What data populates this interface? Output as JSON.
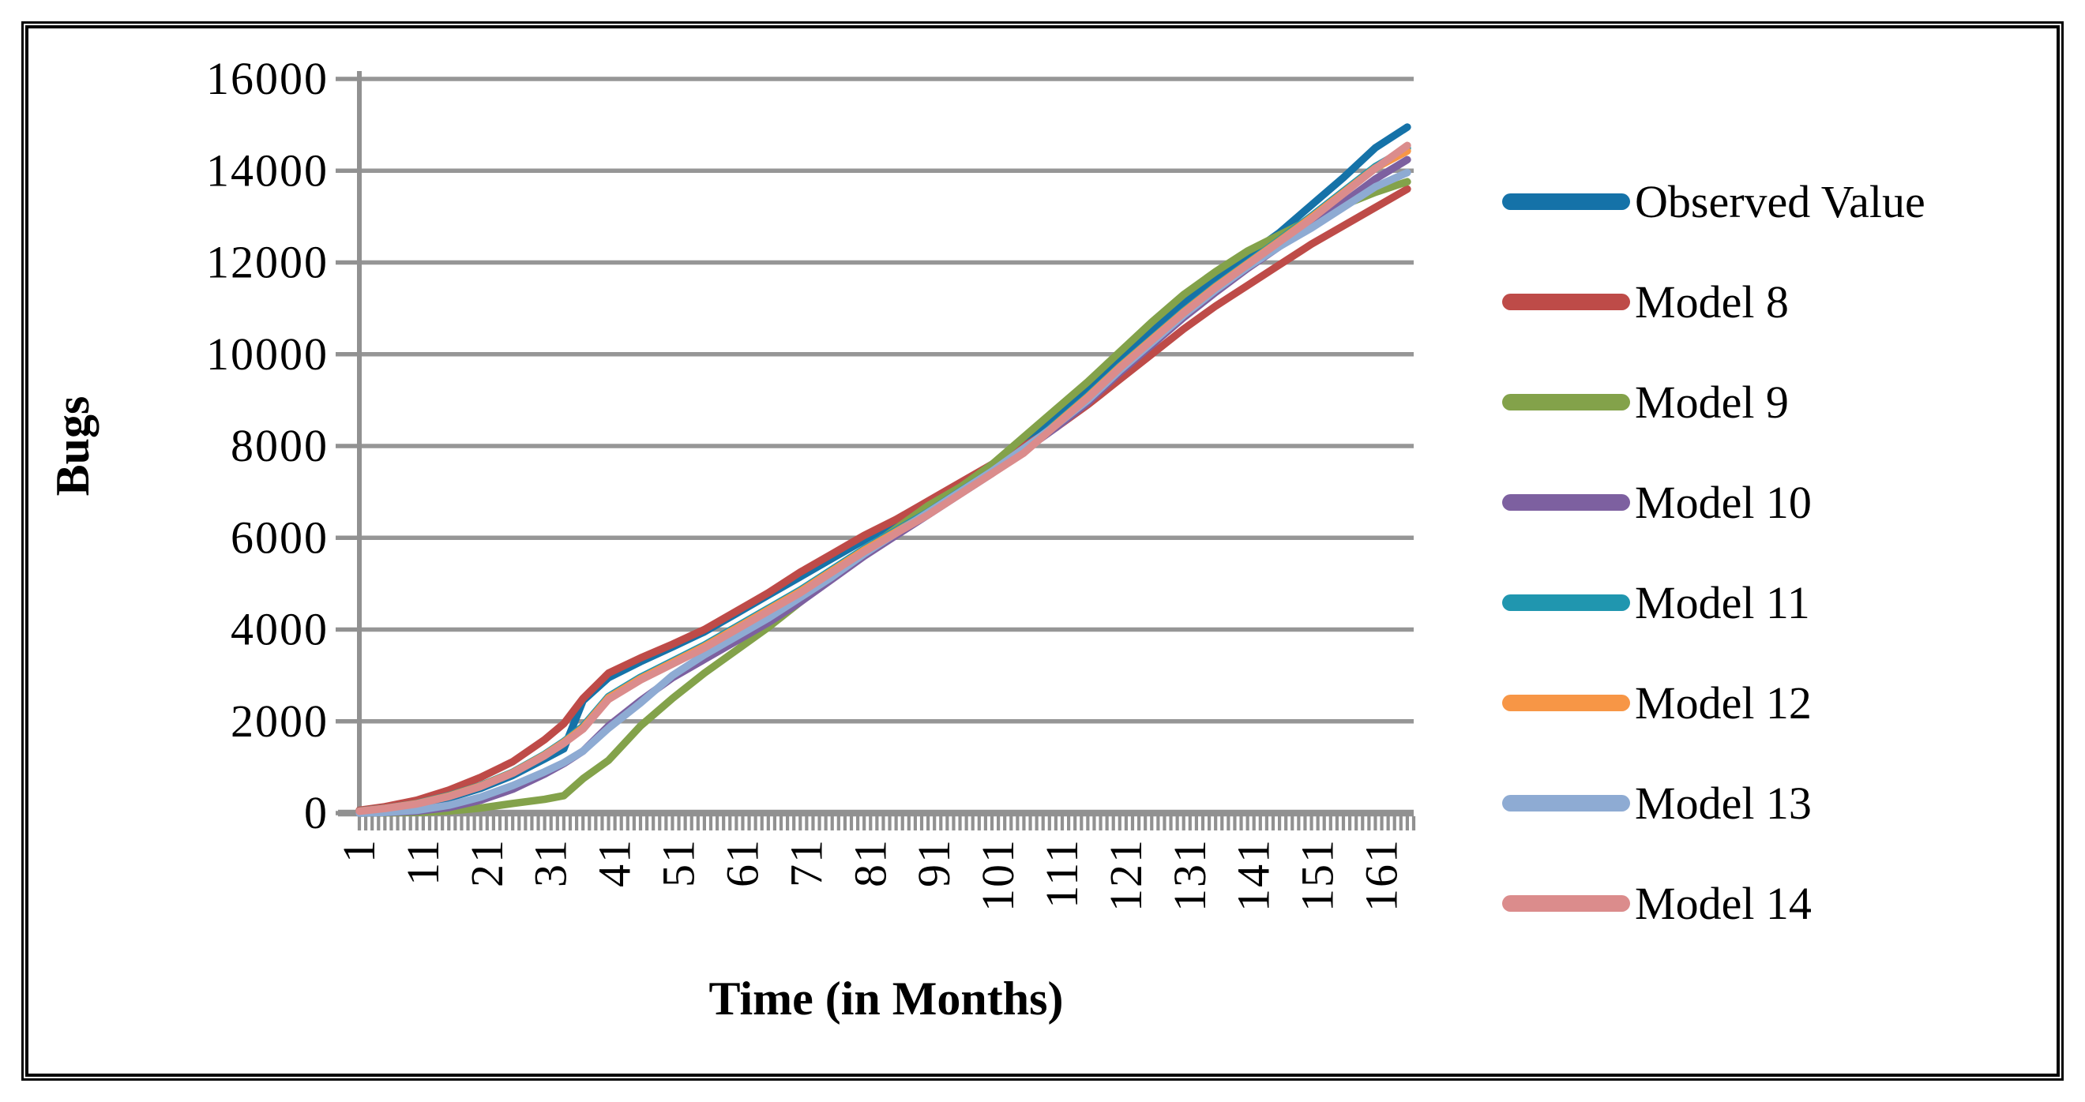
{
  "chart_data": {
    "type": "line",
    "title": "",
    "xlabel": "Time (in Months)",
    "ylabel": "Bugs",
    "x_tick_labels": [
      1,
      11,
      21,
      31,
      41,
      51,
      61,
      71,
      81,
      91,
      101,
      111,
      121,
      131,
      141,
      151,
      161
    ],
    "y_tick_labels": [
      0,
      2000,
      4000,
      6000,
      8000,
      10000,
      12000,
      14000,
      16000
    ],
    "xlim": [
      1,
      166
    ],
    "ylim": [
      0,
      16000
    ],
    "grid": "horizontal-major",
    "legend_position": "right-outside",
    "gridline_color": "#969696",
    "axis_color": "#919191",
    "x": [
      1,
      5,
      10,
      15,
      20,
      25,
      30,
      33,
      36,
      40,
      45,
      50,
      55,
      60,
      65,
      70,
      75,
      80,
      85,
      90,
      95,
      100,
      105,
      110,
      115,
      120,
      125,
      130,
      135,
      140,
      145,
      150,
      155,
      160,
      165
    ],
    "series": [
      {
        "name": "Observed Value",
        "color": "#1572A8",
        "values": [
          35,
          90,
          180,
          330,
          540,
          820,
          1180,
          1400,
          2450,
          2950,
          3300,
          3620,
          3950,
          4350,
          4750,
          5150,
          5550,
          5950,
          6350,
          6750,
          7150,
          7600,
          8100,
          8650,
          9250,
          9900,
          10500,
          11100,
          11650,
          12150,
          12650,
          13250,
          13850,
          14500,
          14950
        ]
      },
      {
        "name": "Model 8",
        "color": "#BE4B48",
        "values": [
          60,
          140,
          280,
          500,
          780,
          1120,
          1600,
          1950,
          2500,
          3050,
          3380,
          3680,
          4000,
          4400,
          4800,
          5250,
          5650,
          6050,
          6400,
          6800,
          7200,
          7600,
          8000,
          8400,
          8900,
          9450,
          10000,
          10550,
          11050,
          11500,
          11950,
          12400,
          12800,
          13200,
          13600
        ]
      },
      {
        "name": "Model 9",
        "color": "#83A24A",
        "values": [
          0,
          5,
          15,
          45,
          110,
          210,
          300,
          380,
          750,
          1150,
          1900,
          2500,
          3050,
          3550,
          4050,
          4600,
          5150,
          5700,
          6200,
          6700,
          7100,
          7600,
          8200,
          8800,
          9400,
          10050,
          10700,
          11300,
          11800,
          12250,
          12600,
          12950,
          13250,
          13530,
          13760
        ]
      },
      {
        "name": "Model 10",
        "color": "#7D60A0",
        "values": [
          0,
          10,
          40,
          120,
          280,
          520,
          850,
          1080,
          1350,
          1900,
          2450,
          2950,
          3350,
          3750,
          4150,
          4600,
          5100,
          5600,
          6050,
          6500,
          6950,
          7400,
          7900,
          8400,
          8950,
          9600,
          10200,
          10800,
          11350,
          11870,
          12350,
          12820,
          13300,
          13820,
          14240
        ]
      },
      {
        "name": "Model 11",
        "color": "#2096AF",
        "values": [
          45,
          105,
          210,
          380,
          600,
          890,
          1280,
          1560,
          1890,
          2540,
          2960,
          3310,
          3660,
          4060,
          4460,
          4860,
          5310,
          5760,
          6160,
          6560,
          7010,
          7450,
          7890,
          8490,
          9090,
          9740,
          10340,
          10940,
          11490,
          11990,
          12490,
          13010,
          13550,
          14090,
          14490
        ]
      },
      {
        "name": "Model 12",
        "color": "#F79646",
        "values": [
          42,
          102,
          205,
          370,
          590,
          880,
          1265,
          1540,
          1860,
          2510,
          2930,
          3280,
          3630,
          4030,
          4430,
          4830,
          5280,
          5730,
          6130,
          6530,
          6980,
          7420,
          7870,
          8470,
          9070,
          9720,
          10320,
          10920,
          11470,
          11970,
          12470,
          12980,
          13520,
          14060,
          14430
        ]
      },
      {
        "name": "Model 13",
        "color": "#8EABD3",
        "values": [
          0,
          15,
          60,
          170,
          350,
          600,
          900,
          1100,
          1350,
          1850,
          2400,
          3000,
          3450,
          3850,
          4250,
          4700,
          5150,
          5650,
          6100,
          6550,
          7000,
          7450,
          7950,
          8450,
          9000,
          9650,
          10250,
          10850,
          11400,
          11900,
          12350,
          12750,
          13200,
          13650,
          13960
        ]
      },
      {
        "name": "Model 14",
        "color": "#DB8C8C",
        "values": [
          40,
          100,
          200,
          360,
          580,
          870,
          1250,
          1520,
          1830,
          2480,
          2900,
          3250,
          3600,
          4000,
          4400,
          4800,
          5250,
          5700,
          6100,
          6500,
          6950,
          7400,
          7850,
          8450,
          9050,
          9700,
          10300,
          10900,
          11450,
          11950,
          12450,
          12950,
          13500,
          14050,
          14550
        ]
      }
    ]
  }
}
